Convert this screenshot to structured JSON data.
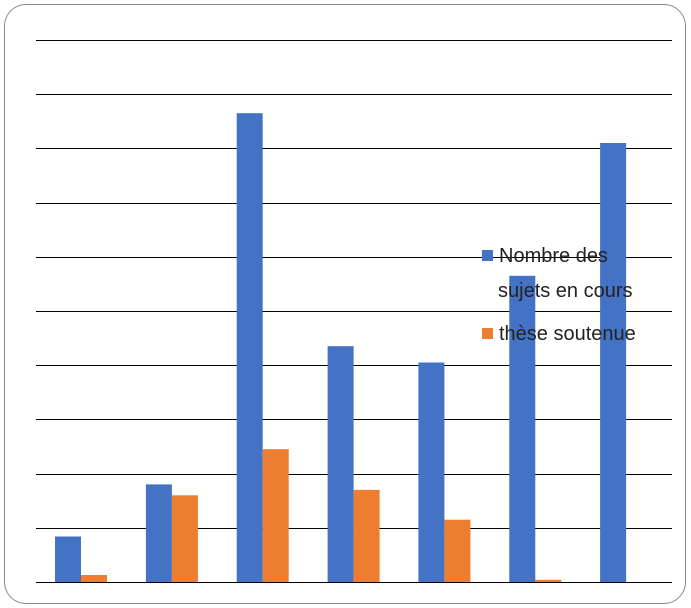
{
  "chart_data": {
    "type": "bar",
    "categories": [
      "",
      "",
      "",
      "",
      "",
      "",
      ""
    ],
    "ylim": [
      0,
      10
    ],
    "grid": true,
    "legend_position": "right",
    "series": [
      {
        "name": "Nombre des sujets en cours",
        "color": "#4472C4",
        "values": [
          0.84,
          1.8,
          8.65,
          4.35,
          4.05,
          5.65,
          8.1
        ]
      },
      {
        "name": "thèse soutenue",
        "color": "#ED7D31",
        "values": [
          0.13,
          1.6,
          2.45,
          1.7,
          1.15,
          0.04,
          0
        ]
      }
    ]
  },
  "legend": {
    "series1_line1": "Nombre des",
    "series1_line2": "sujets en cours",
    "series2_label": "thèse soutenue"
  }
}
